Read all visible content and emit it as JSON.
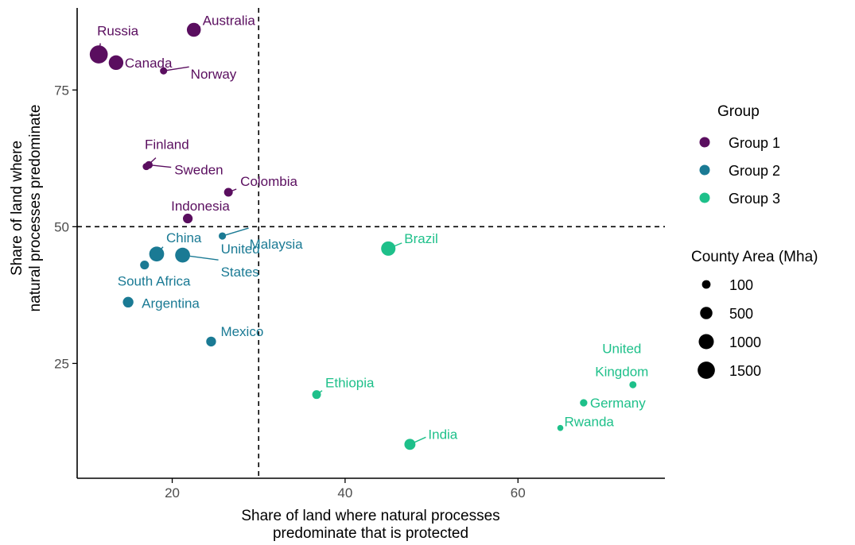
{
  "chart_data": {
    "type": "scatter",
    "title": "",
    "xlabel_lines": [
      "Share of land where natural processes",
      "predominate that is protected"
    ],
    "ylabel_lines": [
      "Share of land where",
      "natural processes predominate"
    ],
    "xlim": [
      9,
      77
    ],
    "ylim": [
      4,
      90
    ],
    "x_ticks": [
      20,
      40,
      60
    ],
    "y_ticks": [
      25,
      50,
      75
    ],
    "reference_lines": {
      "x": 30,
      "y": 50
    },
    "grid": false,
    "legend_placement": "right",
    "group_legend": {
      "title": "Group",
      "entries": [
        {
          "name": "Group 1",
          "color": "#5a0e5f"
        },
        {
          "name": "Group 2",
          "color": "#1a7a94"
        },
        {
          "name": "Group 3",
          "color": "#1ec08a"
        }
      ]
    },
    "size_legend": {
      "title": "County Area (Mha)",
      "entries": [
        {
          "label": "100",
          "value": 100
        },
        {
          "label": "500",
          "value": 500
        },
        {
          "label": "1000",
          "value": 1000
        },
        {
          "label": "1500",
          "value": 1500
        }
      ]
    },
    "points": [
      {
        "label": "Australia",
        "group": "Group 1",
        "x": 22.5,
        "y": 86.0,
        "area": 770
      },
      {
        "label": "Russia",
        "group": "Group 1",
        "x": 11.5,
        "y": 81.5,
        "area": 1700
      },
      {
        "label": "Canada",
        "group": "Group 1",
        "x": 13.5,
        "y": 80.0,
        "area": 900
      },
      {
        "label": "Norway",
        "group": "Group 1",
        "x": 19.0,
        "y": 78.5,
        "area": 30
      },
      {
        "label": "Finland",
        "group": "Group 1",
        "x": 17.0,
        "y": 61.0,
        "area": 30
      },
      {
        "label": "Sweden",
        "group": "Group 1",
        "x": 17.3,
        "y": 61.3,
        "area": 45
      },
      {
        "label": "Colombia",
        "group": "Group 1",
        "x": 26.5,
        "y": 56.3,
        "area": 110
      },
      {
        "label": "Indonesia",
        "group": "Group 1",
        "x": 21.8,
        "y": 51.5,
        "area": 190
      },
      {
        "label": "Malaysia",
        "group": "Group 2",
        "x": 25.8,
        "y": 48.3,
        "area": 33
      },
      {
        "label": "China",
        "group": "Group 2",
        "x": 18.2,
        "y": 45.0,
        "area": 950
      },
      {
        "label": "United\nStates",
        "group": "Group 2",
        "x": 21.2,
        "y": 44.8,
        "area": 950
      },
      {
        "label": "South Africa",
        "group": "Group 2",
        "x": 16.8,
        "y": 43.0,
        "area": 120
      },
      {
        "label": "Argentina",
        "group": "Group 2",
        "x": 14.9,
        "y": 36.2,
        "area": 280
      },
      {
        "label": "Mexico",
        "group": "Group 2",
        "x": 24.5,
        "y": 29.0,
        "area": 200
      },
      {
        "label": "Brazil",
        "group": "Group 3",
        "x": 45.0,
        "y": 46.0,
        "area": 850
      },
      {
        "label": "Ethiopia",
        "group": "Group 3",
        "x": 36.7,
        "y": 19.3,
        "area": 110
      },
      {
        "label": "India",
        "group": "Group 3",
        "x": 47.5,
        "y": 10.2,
        "area": 330
      },
      {
        "label": "United\nKingdom",
        "group": "Group 3",
        "x": 73.3,
        "y": 21.1,
        "area": 25
      },
      {
        "label": "Germany",
        "group": "Group 3",
        "x": 67.6,
        "y": 17.8,
        "area": 36
      },
      {
        "label": "Rwanda",
        "group": "Group 3",
        "x": 64.9,
        "y": 13.2,
        "area": 3
      }
    ]
  }
}
